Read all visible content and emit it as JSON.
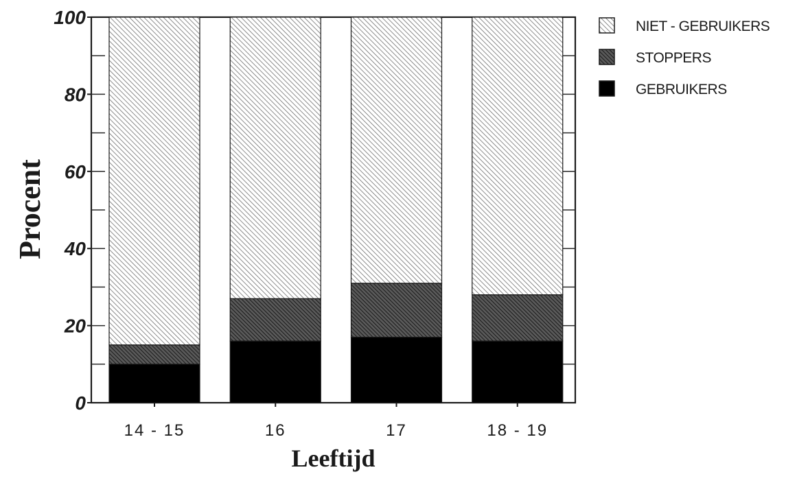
{
  "chart_data": {
    "type": "bar",
    "stacked": true,
    "title": "",
    "xlabel": "Leeftijd",
    "ylabel": "Procent",
    "ylim": [
      0,
      100
    ],
    "yticks": [
      0,
      20,
      40,
      60,
      80,
      100
    ],
    "ytick_labels": [
      "0",
      "20",
      "40",
      "60",
      "80",
      "100"
    ],
    "categories": [
      "14 - 15",
      "16",
      "17",
      "18 - 19"
    ],
    "series": [
      {
        "name": "GEBRUIKERS",
        "values": [
          10,
          16,
          17,
          16
        ],
        "color": "#000000",
        "pattern": "solid"
      },
      {
        "name": "STOPPERS",
        "values": [
          5,
          11,
          14,
          12
        ],
        "color": "#3a3a3a",
        "pattern": "dense-hatch"
      },
      {
        "name": "NIET - GEBRUIKERS",
        "values": [
          85,
          73,
          69,
          72
        ],
        "color": "#6e6e6e",
        "pattern": "light-hatch"
      }
    ],
    "legend": {
      "placement": "top-right",
      "order": [
        "NIET - GEBRUIKERS",
        "STOPPERS",
        "GEBRUIKERS"
      ]
    },
    "grid": false
  }
}
